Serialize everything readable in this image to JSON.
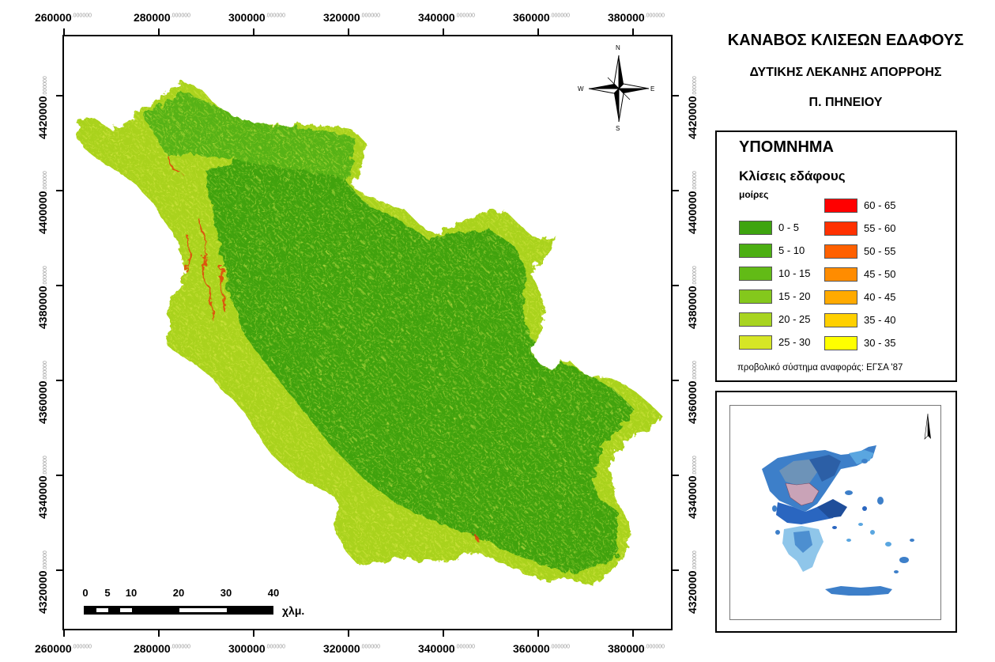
{
  "title": {
    "line1": "ΚΑΝΑΒΟΣ ΚΛΙΣΕΩΝ ΕΔΑΦΟΥΣ",
    "line2": "ΔΥΤΙΚΗΣ ΛΕΚΑΝΗΣ ΑΠΟΡΡΟΗΣ",
    "line3": "Π. ΠΗΝΕΙΟΥ"
  },
  "axes": {
    "x_labels": [
      "260000",
      "280000",
      "300000",
      "320000",
      "340000",
      "360000",
      "380000"
    ],
    "y_labels": [
      "4420000",
      "4400000",
      "4380000",
      "4360000",
      "4340000",
      "4320000"
    ],
    "decimal_suffix": ".000000"
  },
  "north_arrow": {
    "n": "N",
    "s": "S",
    "e": "E",
    "w": "W"
  },
  "legend": {
    "heading": "ΥΠΟΜΝΗΜΑ",
    "subtitle": "Κλίσεις εδάφους",
    "unit": "μοίρες",
    "footnote": "προβολικό σύστημα αναφοράς: ΕΓΣΑ '87",
    "left_items": [
      {
        "label": "0 - 5",
        "color": "#3ea40f"
      },
      {
        "label": "5 - 10",
        "color": "#4caf12"
      },
      {
        "label": "10 - 15",
        "color": "#62bb16"
      },
      {
        "label": "15 - 20",
        "color": "#84c81c"
      },
      {
        "label": "20 - 25",
        "color": "#a8d420"
      },
      {
        "label": "25 - 30",
        "color": "#d6e626"
      }
    ],
    "right_items": [
      {
        "label": "60 - 65",
        "color": "#ff0000"
      },
      {
        "label": "55 - 60",
        "color": "#ff3000"
      },
      {
        "label": "50 - 55",
        "color": "#ff6000"
      },
      {
        "label": "45 - 50",
        "color": "#ff8c00"
      },
      {
        "label": "40 - 45",
        "color": "#ffaa00"
      },
      {
        "label": "35 - 40",
        "color": "#ffd000"
      },
      {
        "label": "30 - 35",
        "color": "#ffff00"
      }
    ]
  },
  "scale_bar": {
    "ticks": [
      "0",
      "5",
      "10",
      "20",
      "30",
      "40"
    ],
    "unit": "χλμ."
  },
  "colors": {
    "basin_green": "#3fa20e",
    "slope_yellow": "#c8de1e",
    "inset_blue": "#3d7fc9",
    "inset_light": "#8fc6ea",
    "inset_dark": "#1f4e9a"
  }
}
